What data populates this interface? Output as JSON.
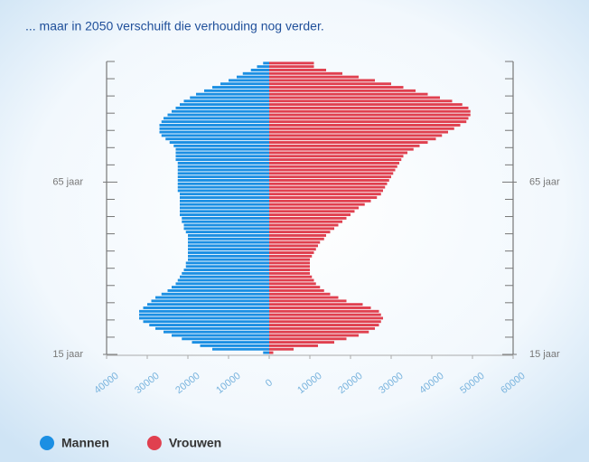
{
  "chart_data": {
    "type": "pyramid",
    "title": "... maar in 2050 verschuift die verhouding nog verder.",
    "y": [
      15,
      16,
      17,
      18,
      19,
      20,
      21,
      22,
      23,
      24,
      25,
      26,
      27,
      28,
      29,
      30,
      31,
      32,
      33,
      34,
      35,
      36,
      37,
      38,
      39,
      40,
      41,
      42,
      43,
      44,
      45,
      46,
      47,
      48,
      49,
      50,
      51,
      52,
      53,
      54,
      55,
      56,
      57,
      58,
      59,
      60,
      61,
      62,
      63,
      64,
      65,
      66,
      67,
      68,
      69,
      70,
      71,
      72,
      73,
      74,
      75,
      76,
      77,
      78,
      79,
      80,
      81,
      82,
      83,
      84,
      85,
      86,
      87,
      88,
      89,
      90,
      91,
      92,
      93,
      94,
      95,
      96,
      97,
      98,
      99
    ],
    "series": [
      {
        "name": "Mannen",
        "color": "#1b8fe3",
        "values": [
          -1500,
          -14000,
          -17000,
          -19000,
          -21500,
          -24000,
          -26000,
          -28000,
          -29500,
          -31000,
          -32000,
          -32000,
          -32000,
          -31000,
          -30000,
          -29000,
          -28000,
          -26500,
          -25000,
          -24000,
          -23000,
          -22500,
          -22000,
          -21500,
          -21000,
          -20500,
          -20500,
          -20000,
          -20000,
          -20000,
          -20000,
          -20000,
          -20000,
          -20000,
          -20000,
          -20500,
          -21000,
          -21000,
          -21500,
          -21500,
          -22000,
          -22000,
          -22000,
          -22000,
          -22000,
          -22000,
          -22000,
          -22500,
          -22500,
          -22500,
          -22500,
          -22500,
          -22500,
          -22500,
          -22500,
          -22500,
          -23000,
          -23000,
          -23000,
          -23000,
          -23500,
          -24500,
          -25500,
          -26500,
          -27000,
          -27000,
          -27000,
          -26500,
          -26000,
          -25000,
          -24000,
          -23000,
          -22000,
          -21000,
          -19500,
          -18000,
          -16000,
          -14000,
          -12000,
          -10000,
          -8000,
          -6500,
          -4500,
          -3000,
          -1500
        ]
      },
      {
        "name": "Vrouwen",
        "color": "#e0404f",
        "values": [
          1000,
          6000,
          12000,
          16000,
          19000,
          22000,
          24500,
          26000,
          27000,
          27500,
          28000,
          27500,
          27000,
          25000,
          23000,
          19000,
          17000,
          15000,
          13500,
          12500,
          11500,
          11000,
          10500,
          10000,
          10000,
          10000,
          10000,
          10000,
          10500,
          11000,
          11500,
          12000,
          12500,
          13500,
          14000,
          15000,
          16000,
          17000,
          18000,
          19000,
          20000,
          21000,
          22000,
          23500,
          25000,
          26500,
          27500,
          28000,
          28500,
          29000,
          29500,
          30000,
          30500,
          31000,
          31500,
          32000,
          32500,
          33000,
          34000,
          35500,
          37000,
          39000,
          41000,
          42500,
          44000,
          45500,
          47000,
          48500,
          49000,
          49500,
          49500,
          49000,
          47500,
          45000,
          42000,
          39000,
          36000,
          33000,
          30000,
          26000,
          22000,
          18000,
          14000,
          11000,
          11000
        ]
      }
    ],
    "xlim": [
      -40000,
      60000
    ],
    "xticks": [
      {
        "value": -40000,
        "label": "40000"
      },
      {
        "value": -30000,
        "label": "30000"
      },
      {
        "value": -20000,
        "label": "20000"
      },
      {
        "value": -10000,
        "label": "10000"
      },
      0,
      10000,
      20000,
      30000,
      40000,
      50000,
      60000
    ],
    "ylim": [
      15,
      100
    ],
    "yticks": [
      {
        "value": 15,
        "label": "15 jaar"
      },
      {
        "value": 65,
        "label": "65 jaar"
      }
    ],
    "yminorticks": [
      20,
      25,
      30,
      35,
      40,
      45,
      50,
      55,
      60,
      70,
      75,
      80,
      85,
      90,
      95,
      100
    ],
    "legend": "bottom-left"
  }
}
